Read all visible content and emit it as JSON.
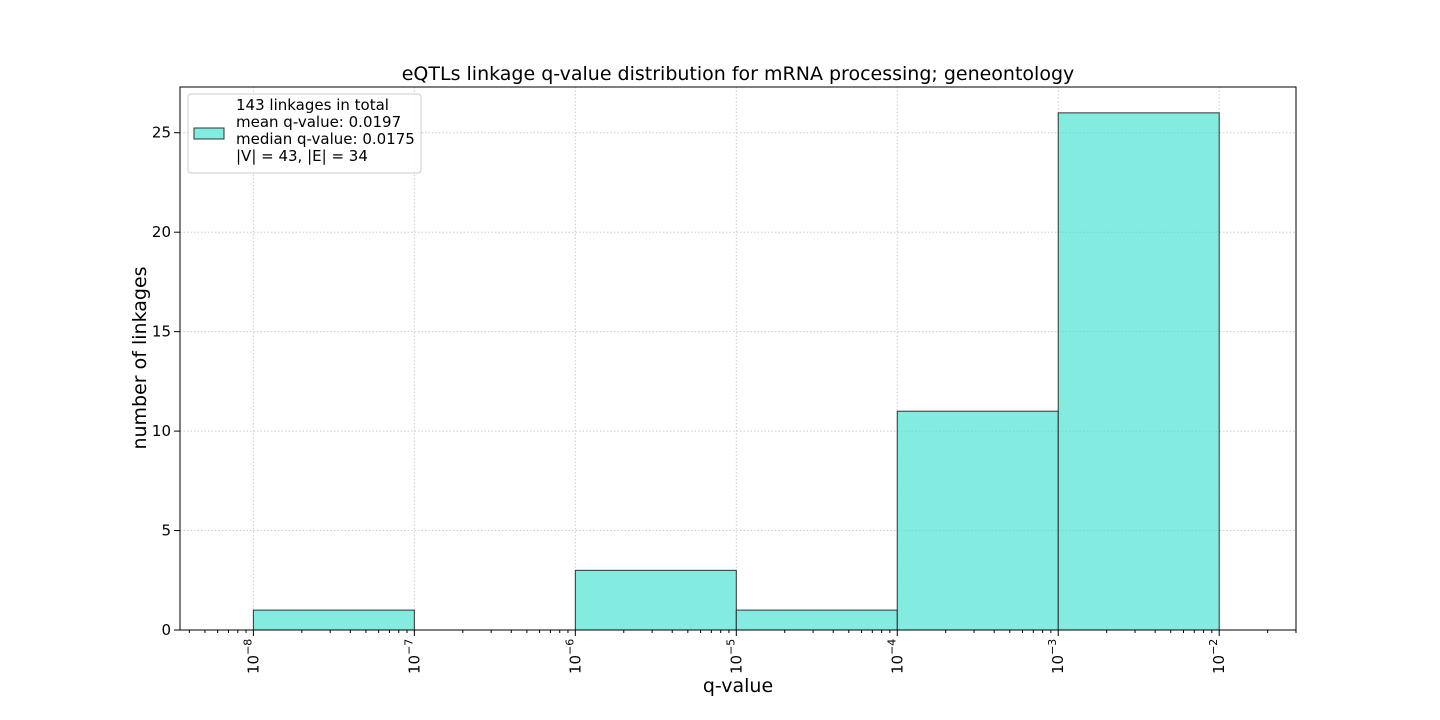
{
  "chart_data": {
    "type": "bar",
    "title": "eQTLs linkage q-value distribution for mRNA processing; geneontology",
    "xlabel": "q-value",
    "ylabel": "number of linkages",
    "x_scale": "log",
    "xlim": [
      3.5e-09,
      0.03
    ],
    "ylim": [
      0,
      27.3
    ],
    "grid": true,
    "bins": [
      {
        "from": 1e-08,
        "to": 1e-07,
        "value": 1
      },
      {
        "from": 1e-07,
        "to": 1e-06,
        "value": 0
      },
      {
        "from": 1e-06,
        "to": 1e-05,
        "value": 3
      },
      {
        "from": 1e-05,
        "to": 0.0001,
        "value": 1
      },
      {
        "from": 0.0001,
        "to": 0.001,
        "value": 11
      },
      {
        "from": 0.001,
        "to": 0.01,
        "value": 26
      }
    ],
    "x_ticks": [
      {
        "value": 1e-08,
        "base": "10",
        "exp": "−8"
      },
      {
        "value": 1e-07,
        "base": "10",
        "exp": "−7"
      },
      {
        "value": 1e-06,
        "base": "10",
        "exp": "−6"
      },
      {
        "value": 1e-05,
        "base": "10",
        "exp": "−5"
      },
      {
        "value": 0.0001,
        "base": "10",
        "exp": "−4"
      },
      {
        "value": 0.001,
        "base": "10",
        "exp": "−3"
      },
      {
        "value": 0.01,
        "base": "10",
        "exp": "−2"
      }
    ],
    "y_ticks": [
      0,
      5,
      10,
      15,
      20,
      25
    ],
    "legend": {
      "position": "upper-left",
      "lines": [
        "143 linkages in total",
        "mean q-value: 0.0197",
        "median q-value: 0.0175",
        "|V| = 43, |E| = 34"
      ]
    },
    "colors": {
      "bar_fill": "#40e0d0",
      "bar_fill_opacity": 0.65,
      "bar_edge": "#333333",
      "grid": "#cccccc",
      "axis": "#000000"
    }
  }
}
